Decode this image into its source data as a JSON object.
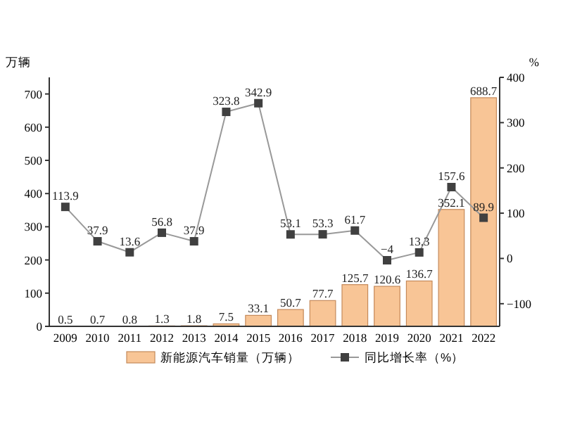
{
  "chart_data": {
    "type": "bar",
    "ylabel": "万辆",
    "y2label": "%",
    "categories": [
      "2009",
      "2010",
      "2011",
      "2012",
      "2013",
      "2014",
      "2015",
      "2016",
      "2017",
      "2018",
      "2019",
      "2020",
      "2021",
      "2022"
    ],
    "series": [
      {
        "name": "新能源汽车销量（万辆）",
        "color": "#f8c596",
        "values": [
          0.5,
          0.7,
          0.8,
          1.3,
          1.8,
          7.5,
          33.1,
          50.7,
          77.7,
          125.7,
          120.6,
          136.7,
          352.1,
          688.7
        ]
      },
      {
        "name": "同比增长率（%）",
        "type": "line",
        "axis": "y2",
        "color": "#404040",
        "marker": "square",
        "values": [
          113.9,
          37.9,
          13.6,
          56.8,
          37.9,
          323.8,
          342.9,
          53.1,
          53.3,
          61.7,
          -4,
          13.3,
          157.6,
          89.9
        ]
      }
    ],
    "ylim": [
      0,
      750
    ],
    "yticks": [
      0,
      100,
      200,
      300,
      400,
      500,
      600,
      700
    ],
    "y2lim": [
      -150,
      400
    ],
    "y2ticks": [
      -100,
      0,
      100,
      200,
      300,
      400
    ],
    "data_labels": true,
    "legend": "bottom",
    "grid": false
  }
}
